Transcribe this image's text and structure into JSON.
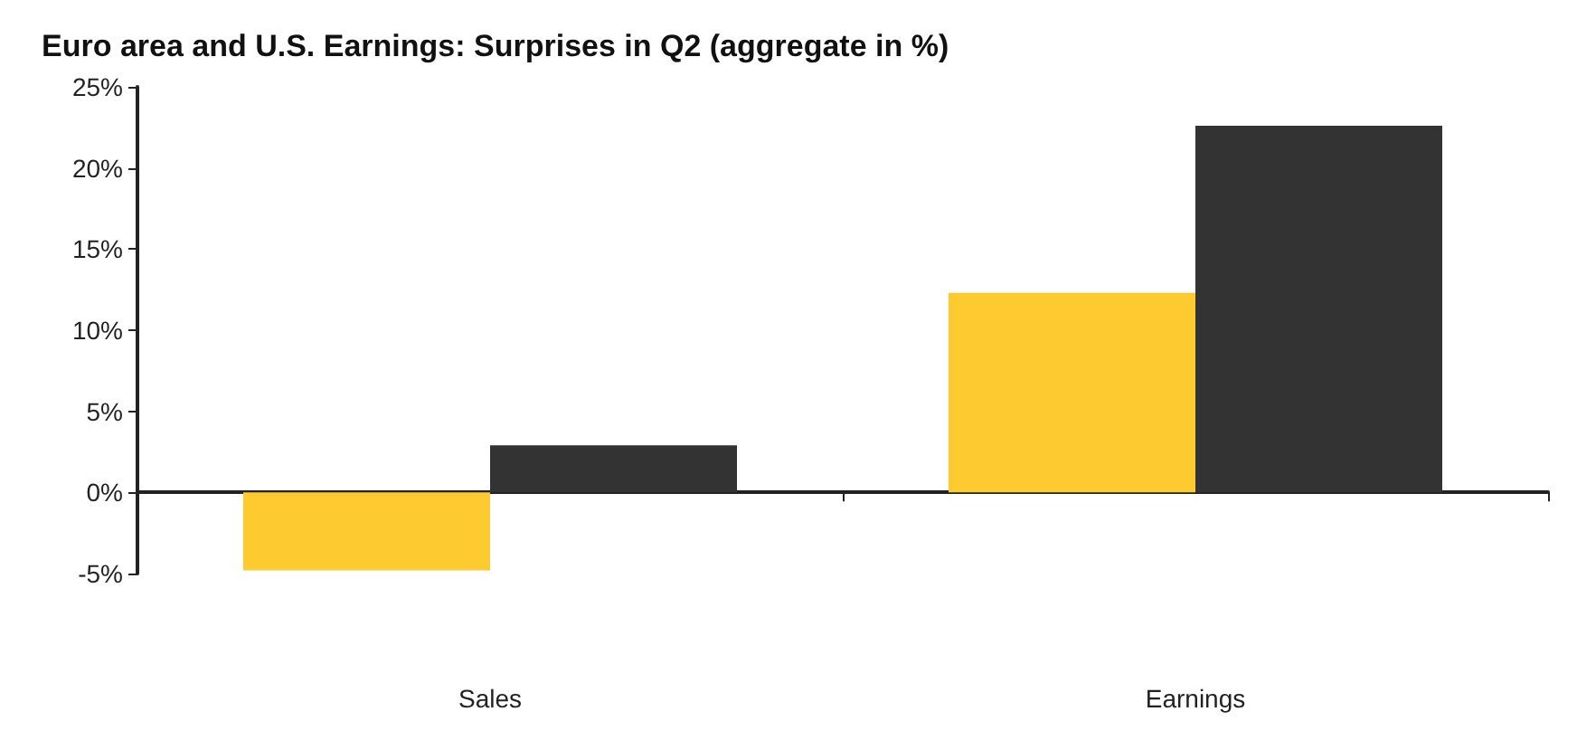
{
  "chart_data": {
    "type": "bar",
    "title": "Euro area and U.S. Earnings: Surprises in Q2 (aggregate in %)",
    "categories": [
      "Sales",
      "Earnings"
    ],
    "series": [
      {
        "color": "#fdca2f",
        "values": [
          -4.8,
          12.3
        ]
      },
      {
        "color": "#333333",
        "values": [
          2.9,
          22.6
        ]
      }
    ],
    "ylim": [
      -5,
      25
    ],
    "yticks": [
      {
        "value": -5,
        "label": "-5%"
      },
      {
        "value": 0,
        "label": "0%"
      },
      {
        "value": 5,
        "label": "5%"
      },
      {
        "value": 10,
        "label": "10%"
      },
      {
        "value": 15,
        "label": "15%"
      },
      {
        "value": 20,
        "label": "20%"
      },
      {
        "value": 25,
        "label": "25%"
      }
    ]
  }
}
